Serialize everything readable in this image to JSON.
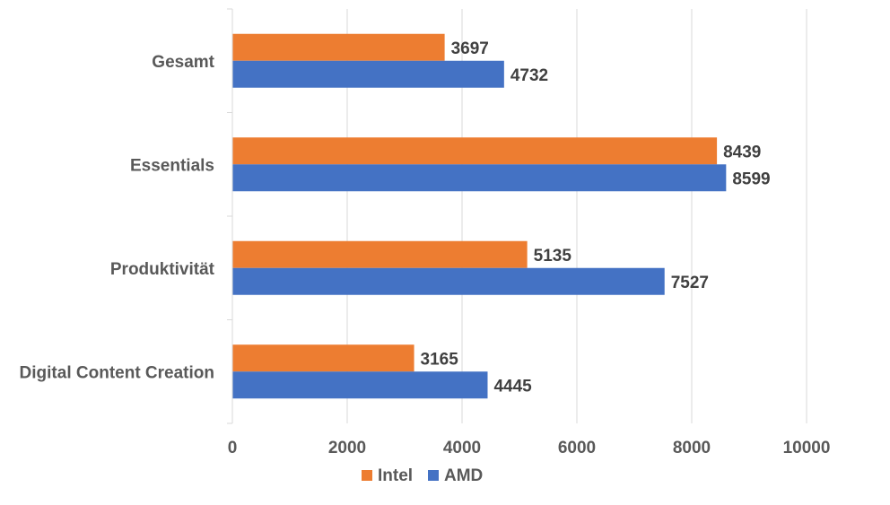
{
  "chart_data": {
    "type": "bar",
    "orientation": "horizontal",
    "categories": [
      "Gesamt",
      "Essentials",
      "Produktivität",
      "Digital Content Creation"
    ],
    "series": [
      {
        "name": "Intel",
        "color": "#ED7D31",
        "values": [
          3697,
          8439,
          5135,
          3165
        ]
      },
      {
        "name": "AMD",
        "color": "#4472C4",
        "values": [
          4732,
          8599,
          7527,
          4445
        ]
      }
    ],
    "xlim": [
      0,
      10000
    ],
    "xticks": [
      0,
      2000,
      4000,
      6000,
      8000,
      10000
    ],
    "grid": true,
    "legend_position": "bottom",
    "data_labels": true
  }
}
